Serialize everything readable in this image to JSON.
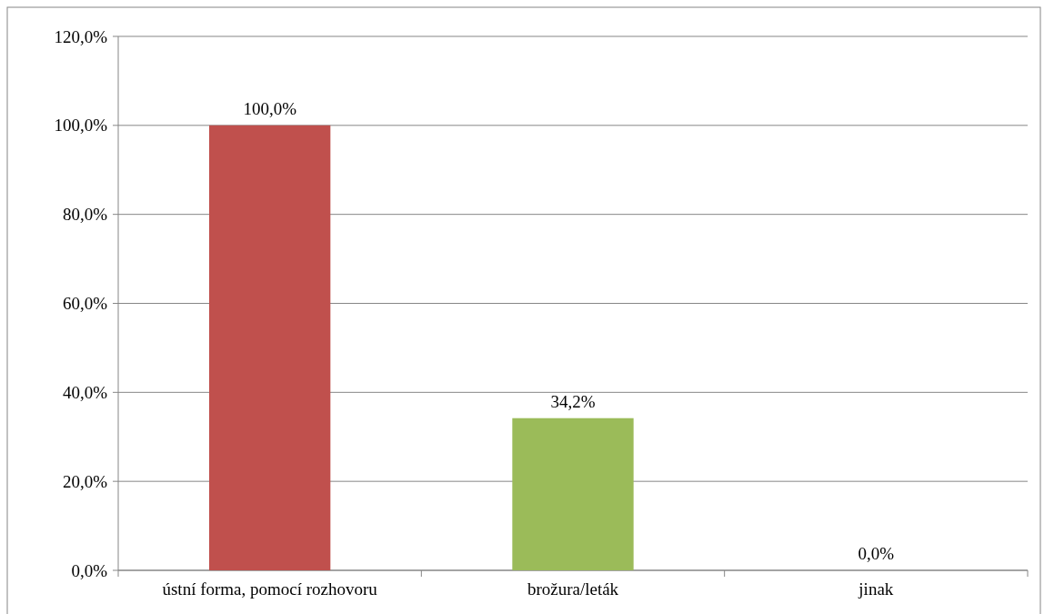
{
  "chart_data": {
    "type": "bar",
    "categories": [
      "ústní forma, pomocí rozhovoru",
      "brožura/leták",
      "jinak"
    ],
    "values": [
      100.0,
      34.2,
      0.0
    ],
    "colors": [
      "#c0504d",
      "#9bbb59",
      "#4f81bd"
    ],
    "value_labels": [
      "100,0%",
      "34,2%",
      "0,0%"
    ],
    "ylim": [
      0,
      120
    ],
    "yticks": [
      {
        "value": 0,
        "label": "0,0%"
      },
      {
        "value": 20,
        "label": "20,0%"
      },
      {
        "value": 40,
        "label": "40,0%"
      },
      {
        "value": 60,
        "label": "60,0%"
      },
      {
        "value": 80,
        "label": "80,0%"
      },
      {
        "value": 100,
        "label": "100,0%"
      },
      {
        "value": 120,
        "label": "120,0%"
      }
    ],
    "grid": "y"
  }
}
